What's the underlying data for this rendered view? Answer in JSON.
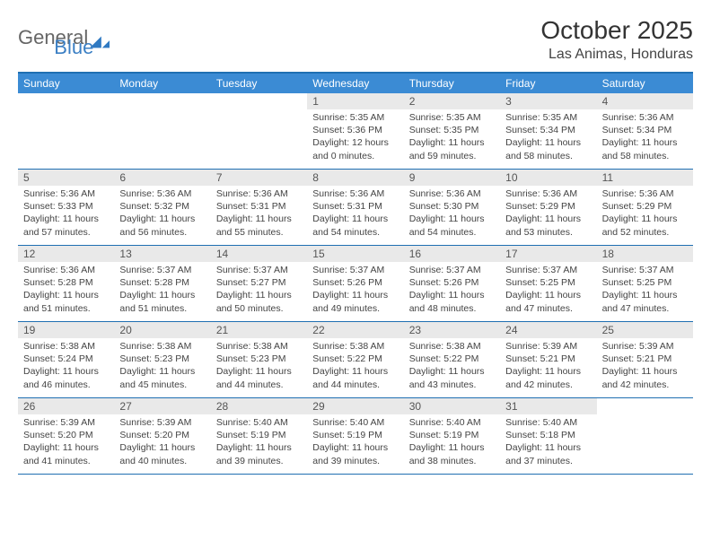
{
  "logo": {
    "word1": "General",
    "word2": "Blue"
  },
  "title": "October 2025",
  "location": "Las Animas, Honduras",
  "day_headers": [
    "Sunday",
    "Monday",
    "Tuesday",
    "Wednesday",
    "Thursday",
    "Friday",
    "Saturday"
  ],
  "colors": {
    "header_bg": "#3b8bd4",
    "header_border": "#1f6fb2",
    "daynum_bg": "#e9e9e9",
    "text": "#444444",
    "logo_gray": "#666666",
    "logo_blue": "#3b7fc4"
  },
  "weeks": [
    [
      {
        "n": "",
        "sr": "",
        "ss": "",
        "dl": ""
      },
      {
        "n": "",
        "sr": "",
        "ss": "",
        "dl": ""
      },
      {
        "n": "",
        "sr": "",
        "ss": "",
        "dl": ""
      },
      {
        "n": "1",
        "sr": "Sunrise: 5:35 AM",
        "ss": "Sunset: 5:36 PM",
        "dl": "Daylight: 12 hours and 0 minutes."
      },
      {
        "n": "2",
        "sr": "Sunrise: 5:35 AM",
        "ss": "Sunset: 5:35 PM",
        "dl": "Daylight: 11 hours and 59 minutes."
      },
      {
        "n": "3",
        "sr": "Sunrise: 5:35 AM",
        "ss": "Sunset: 5:34 PM",
        "dl": "Daylight: 11 hours and 58 minutes."
      },
      {
        "n": "4",
        "sr": "Sunrise: 5:36 AM",
        "ss": "Sunset: 5:34 PM",
        "dl": "Daylight: 11 hours and 58 minutes."
      }
    ],
    [
      {
        "n": "5",
        "sr": "Sunrise: 5:36 AM",
        "ss": "Sunset: 5:33 PM",
        "dl": "Daylight: 11 hours and 57 minutes."
      },
      {
        "n": "6",
        "sr": "Sunrise: 5:36 AM",
        "ss": "Sunset: 5:32 PM",
        "dl": "Daylight: 11 hours and 56 minutes."
      },
      {
        "n": "7",
        "sr": "Sunrise: 5:36 AM",
        "ss": "Sunset: 5:31 PM",
        "dl": "Daylight: 11 hours and 55 minutes."
      },
      {
        "n": "8",
        "sr": "Sunrise: 5:36 AM",
        "ss": "Sunset: 5:31 PM",
        "dl": "Daylight: 11 hours and 54 minutes."
      },
      {
        "n": "9",
        "sr": "Sunrise: 5:36 AM",
        "ss": "Sunset: 5:30 PM",
        "dl": "Daylight: 11 hours and 54 minutes."
      },
      {
        "n": "10",
        "sr": "Sunrise: 5:36 AM",
        "ss": "Sunset: 5:29 PM",
        "dl": "Daylight: 11 hours and 53 minutes."
      },
      {
        "n": "11",
        "sr": "Sunrise: 5:36 AM",
        "ss": "Sunset: 5:29 PM",
        "dl": "Daylight: 11 hours and 52 minutes."
      }
    ],
    [
      {
        "n": "12",
        "sr": "Sunrise: 5:36 AM",
        "ss": "Sunset: 5:28 PM",
        "dl": "Daylight: 11 hours and 51 minutes."
      },
      {
        "n": "13",
        "sr": "Sunrise: 5:37 AM",
        "ss": "Sunset: 5:28 PM",
        "dl": "Daylight: 11 hours and 51 minutes."
      },
      {
        "n": "14",
        "sr": "Sunrise: 5:37 AM",
        "ss": "Sunset: 5:27 PM",
        "dl": "Daylight: 11 hours and 50 minutes."
      },
      {
        "n": "15",
        "sr": "Sunrise: 5:37 AM",
        "ss": "Sunset: 5:26 PM",
        "dl": "Daylight: 11 hours and 49 minutes."
      },
      {
        "n": "16",
        "sr": "Sunrise: 5:37 AM",
        "ss": "Sunset: 5:26 PM",
        "dl": "Daylight: 11 hours and 48 minutes."
      },
      {
        "n": "17",
        "sr": "Sunrise: 5:37 AM",
        "ss": "Sunset: 5:25 PM",
        "dl": "Daylight: 11 hours and 47 minutes."
      },
      {
        "n": "18",
        "sr": "Sunrise: 5:37 AM",
        "ss": "Sunset: 5:25 PM",
        "dl": "Daylight: 11 hours and 47 minutes."
      }
    ],
    [
      {
        "n": "19",
        "sr": "Sunrise: 5:38 AM",
        "ss": "Sunset: 5:24 PM",
        "dl": "Daylight: 11 hours and 46 minutes."
      },
      {
        "n": "20",
        "sr": "Sunrise: 5:38 AM",
        "ss": "Sunset: 5:23 PM",
        "dl": "Daylight: 11 hours and 45 minutes."
      },
      {
        "n": "21",
        "sr": "Sunrise: 5:38 AM",
        "ss": "Sunset: 5:23 PM",
        "dl": "Daylight: 11 hours and 44 minutes."
      },
      {
        "n": "22",
        "sr": "Sunrise: 5:38 AM",
        "ss": "Sunset: 5:22 PM",
        "dl": "Daylight: 11 hours and 44 minutes."
      },
      {
        "n": "23",
        "sr": "Sunrise: 5:38 AM",
        "ss": "Sunset: 5:22 PM",
        "dl": "Daylight: 11 hours and 43 minutes."
      },
      {
        "n": "24",
        "sr": "Sunrise: 5:39 AM",
        "ss": "Sunset: 5:21 PM",
        "dl": "Daylight: 11 hours and 42 minutes."
      },
      {
        "n": "25",
        "sr": "Sunrise: 5:39 AM",
        "ss": "Sunset: 5:21 PM",
        "dl": "Daylight: 11 hours and 42 minutes."
      }
    ],
    [
      {
        "n": "26",
        "sr": "Sunrise: 5:39 AM",
        "ss": "Sunset: 5:20 PM",
        "dl": "Daylight: 11 hours and 41 minutes."
      },
      {
        "n": "27",
        "sr": "Sunrise: 5:39 AM",
        "ss": "Sunset: 5:20 PM",
        "dl": "Daylight: 11 hours and 40 minutes."
      },
      {
        "n": "28",
        "sr": "Sunrise: 5:40 AM",
        "ss": "Sunset: 5:19 PM",
        "dl": "Daylight: 11 hours and 39 minutes."
      },
      {
        "n": "29",
        "sr": "Sunrise: 5:40 AM",
        "ss": "Sunset: 5:19 PM",
        "dl": "Daylight: 11 hours and 39 minutes."
      },
      {
        "n": "30",
        "sr": "Sunrise: 5:40 AM",
        "ss": "Sunset: 5:19 PM",
        "dl": "Daylight: 11 hours and 38 minutes."
      },
      {
        "n": "31",
        "sr": "Sunrise: 5:40 AM",
        "ss": "Sunset: 5:18 PM",
        "dl": "Daylight: 11 hours and 37 minutes."
      },
      {
        "n": "",
        "sr": "",
        "ss": "",
        "dl": ""
      }
    ]
  ]
}
